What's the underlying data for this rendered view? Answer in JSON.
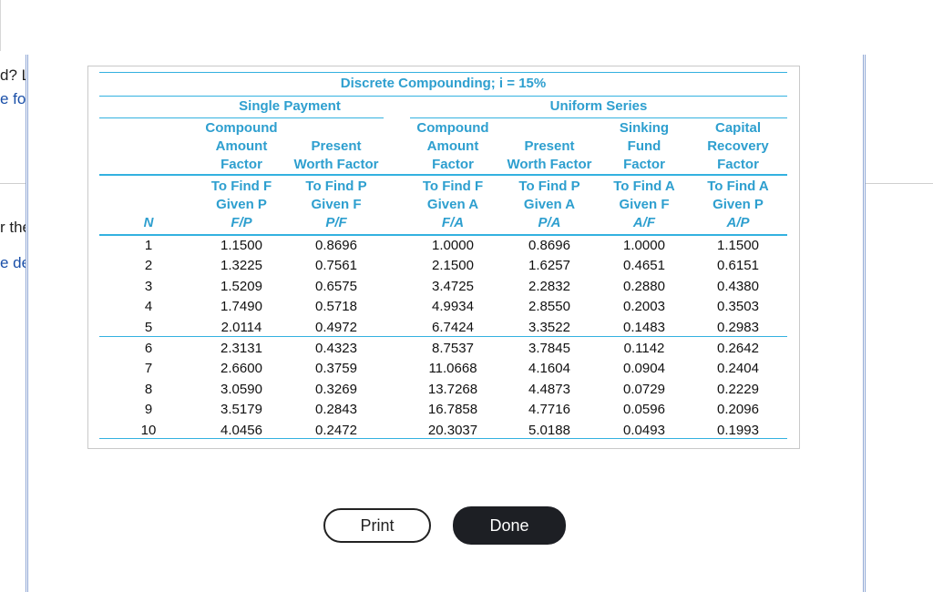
{
  "background": {
    "fragments": [
      "d? L",
      "e fo",
      "r the",
      "e de"
    ]
  },
  "table": {
    "title": "Discrete Compounding; i = 15%",
    "group_single": "Single Payment",
    "group_uniform": "Uniform Series",
    "n_header": "N",
    "columns": [
      {
        "name": [
          "Compound",
          "Amount",
          "Factor"
        ],
        "find": [
          "To Find F",
          "Given P"
        ],
        "notation": "F/P"
      },
      {
        "name": [
          "",
          "Present",
          "Worth Factor"
        ],
        "find": [
          "To Find P",
          "Given F"
        ],
        "notation": "P/F"
      },
      {
        "name": [
          "Compound",
          "Amount",
          "Factor"
        ],
        "find": [
          "To Find F",
          "Given A"
        ],
        "notation": "F/A"
      },
      {
        "name": [
          "",
          "Present",
          "Worth Factor"
        ],
        "find": [
          "To Find P",
          "Given A"
        ],
        "notation": "P/A"
      },
      {
        "name": [
          "Sinking",
          "Fund",
          "Factor"
        ],
        "find": [
          "To Find A",
          "Given F"
        ],
        "notation": "A/F"
      },
      {
        "name": [
          "Capital",
          "Recovery",
          "Factor"
        ],
        "find": [
          "To Find A",
          "Given P"
        ],
        "notation": "A/P"
      }
    ],
    "rows": [
      [
        "1",
        "1.1500",
        "0.8696",
        "1.0000",
        "0.8696",
        "1.0000",
        "1.1500"
      ],
      [
        "2",
        "1.3225",
        "0.7561",
        "2.1500",
        "1.6257",
        "0.4651",
        "0.6151"
      ],
      [
        "3",
        "1.5209",
        "0.6575",
        "3.4725",
        "2.2832",
        "0.2880",
        "0.4380"
      ],
      [
        "4",
        "1.7490",
        "0.5718",
        "4.9934",
        "2.8550",
        "0.2003",
        "0.3503"
      ],
      [
        "5",
        "2.0114",
        "0.4972",
        "6.7424",
        "3.3522",
        "0.1483",
        "0.2983"
      ],
      [
        "6",
        "2.3131",
        "0.4323",
        "8.7537",
        "3.7845",
        "0.1142",
        "0.2642"
      ],
      [
        "7",
        "2.6600",
        "0.3759",
        "11.0668",
        "4.1604",
        "0.0904",
        "0.2404"
      ],
      [
        "8",
        "3.0590",
        "0.3269",
        "13.7268",
        "4.4873",
        "0.0729",
        "0.2229"
      ],
      [
        "9",
        "3.5179",
        "0.2843",
        "16.7858",
        "4.7716",
        "0.0596",
        "0.2096"
      ],
      [
        "10",
        "4.0456",
        "0.2472",
        "20.3037",
        "5.0188",
        "0.0493",
        "0.1993"
      ]
    ]
  },
  "buttons": {
    "print_label": "Print",
    "done_label": "Done"
  },
  "colors": {
    "header_text": "#2e9fcf",
    "rule": "#33b1e0",
    "done_bg": "#1d1f24"
  }
}
